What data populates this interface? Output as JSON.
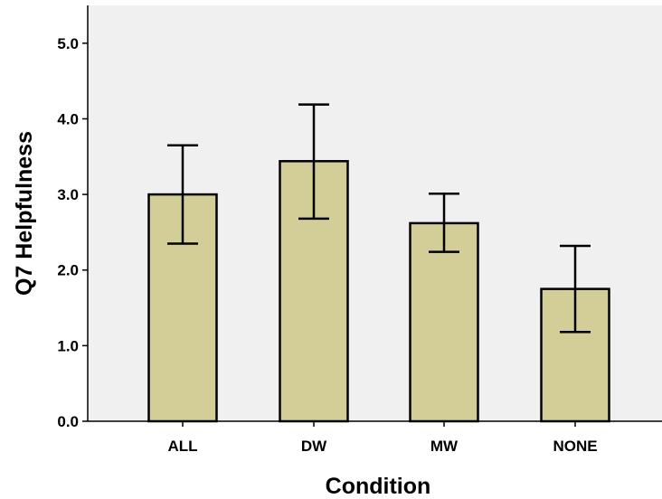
{
  "chart_data": {
    "type": "bar",
    "title": "",
    "xlabel": "Condition",
    "ylabel": "Q7 Helpfulness",
    "categories": [
      "ALL",
      "DW",
      "MW",
      "NONE"
    ],
    "values": [
      3.0,
      3.44,
      2.62,
      1.75
    ],
    "error_low": [
      2.35,
      2.68,
      2.24,
      1.18
    ],
    "error_high": [
      3.65,
      4.19,
      3.01,
      2.32
    ],
    "ylim": [
      0,
      5.5
    ],
    "yticks": [
      "0.0",
      "1.0",
      "2.0",
      "3.0",
      "4.0",
      "5.0"
    ],
    "grid": false,
    "legend": "none",
    "colors": {
      "plot_background": "#f0f0f0",
      "bar_fill": "#d3ce98",
      "bar_stroke": "#000000",
      "error_bar": "#000000"
    }
  }
}
